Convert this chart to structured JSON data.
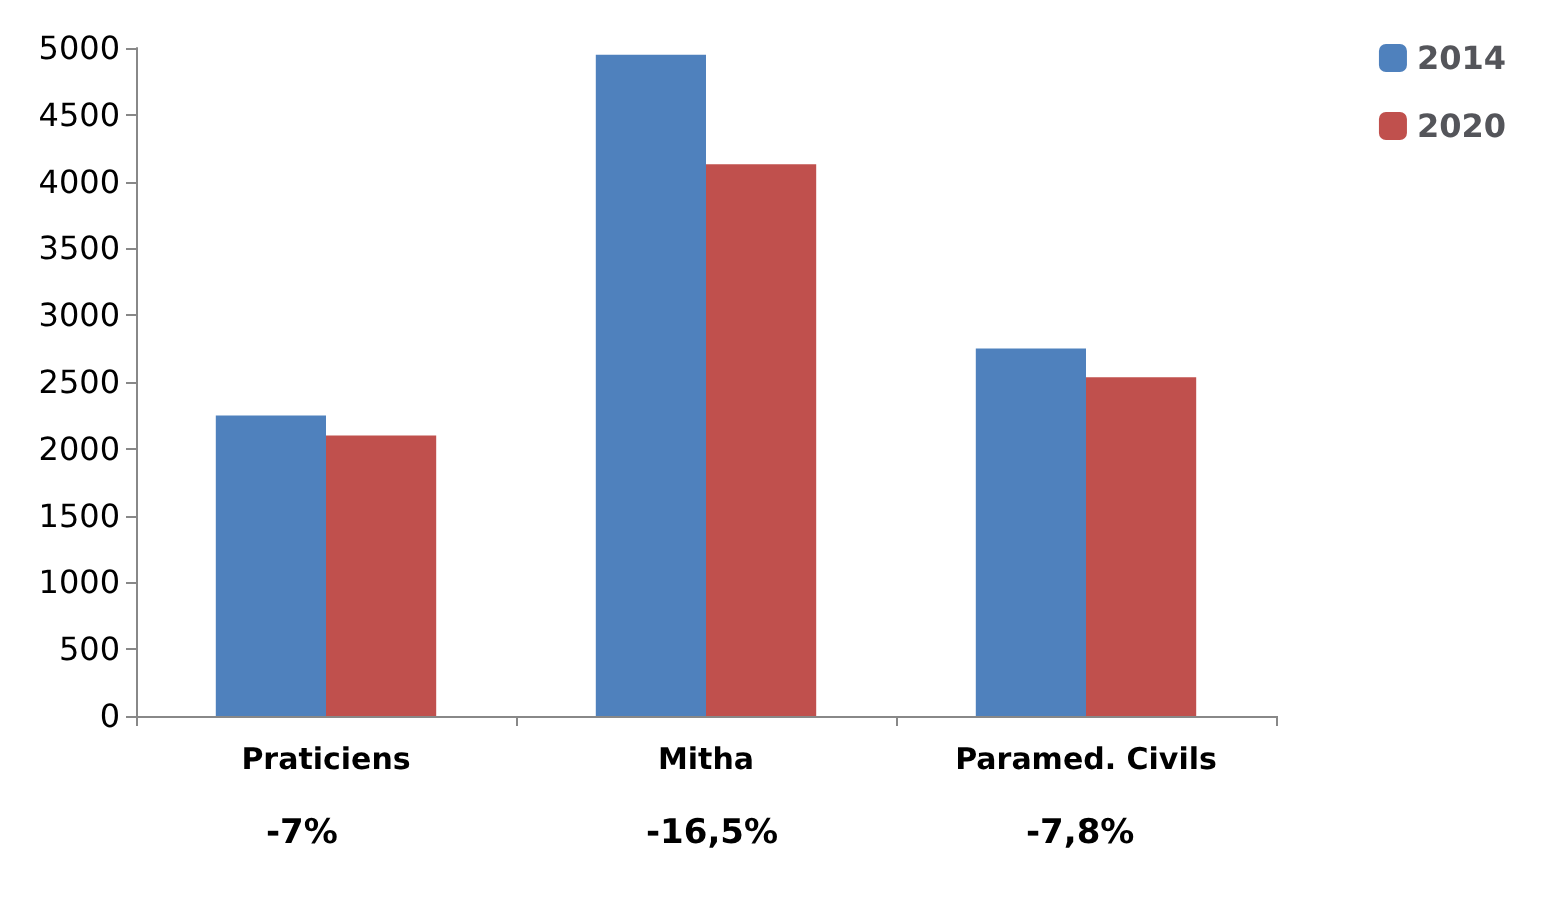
{
  "chart_data": {
    "type": "bar",
    "categories": [
      "Praticiens",
      "Mitha",
      "Paramed. Civils"
    ],
    "series": [
      {
        "name": "2014",
        "color": "#4f81bd",
        "values": [
          2250,
          4950,
          2750
        ]
      },
      {
        "name": "2020",
        "color": "#c0504d",
        "values": [
          2100,
          4130,
          2535
        ]
      }
    ],
    "ylim": [
      0,
      5000
    ],
    "yticks": [
      0,
      500,
      1000,
      1500,
      2000,
      2500,
      3000,
      3500,
      4000,
      4500,
      5000
    ],
    "grid": false,
    "legend": "top right",
    "annotations": [
      "-7%",
      "-16,5%",
      "-7,8%"
    ]
  }
}
